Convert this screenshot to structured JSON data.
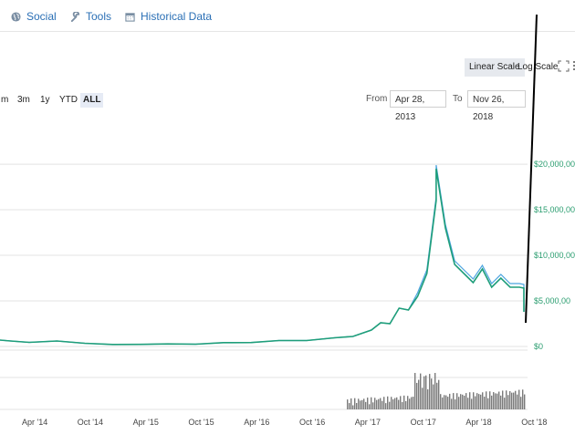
{
  "tabs": {
    "social": {
      "label": "Social",
      "icon": "globe-icon"
    },
    "tools": {
      "label": "Tools",
      "icon": "wrench-icon"
    },
    "historical": {
      "label": "Historical Data",
      "icon": "calendar-icon"
    }
  },
  "scale": {
    "linear": "Linear Scale",
    "log": "Log Scale",
    "active": "linear"
  },
  "ranges": [
    "m",
    "3m",
    "1y",
    "YTD",
    "ALL"
  ],
  "active_range": "ALL",
  "date_range": {
    "from_label": "From",
    "from": "Apr 28, 2013",
    "to_label": "To",
    "to": "Nov 26, 2018"
  },
  "colors": {
    "accent": "#2a6fb5",
    "price_line": "#1f9e7a",
    "price_line_alt": "#4aa3df",
    "volume": "#7a7a7a",
    "axis_text": "#2a9d6f"
  },
  "chart_data": {
    "type": "line",
    "yticks": [
      "$20,000,00",
      "$15,000,00",
      "$10,000,00",
      "$5,000,00",
      "$0"
    ],
    "ylim": [
      0,
      20000
    ],
    "xticks": [
      "Apr '14",
      "Oct '14",
      "Apr '15",
      "Oct '15",
      "Apr '16",
      "Oct '16",
      "Apr '17",
      "Oct '17",
      "Apr '18",
      "Oct '18"
    ],
    "series": [
      {
        "x": [
          "2013-11",
          "2014-02",
          "2014-04",
          "2014-07",
          "2014-10",
          "2015-01",
          "2015-04",
          "2015-07",
          "2015-10",
          "2016-01",
          "2016-04",
          "2016-07",
          "2016-10",
          "2017-01",
          "2017-03",
          "2017-05",
          "2017-06",
          "2017-07",
          "2017-08",
          "2017-09",
          "2017-10",
          "2017-11",
          "2017-12",
          "2017-12",
          "2018-01",
          "2018-02",
          "2018-03",
          "2018-04",
          "2018-05",
          "2018-06",
          "2018-07",
          "2018-08",
          "2018-09",
          "2018-10",
          "2018-11",
          "2018-11"
        ],
        "values": [
          700,
          600,
          450,
          600,
          350,
          220,
          230,
          280,
          250,
          420,
          430,
          650,
          650,
          950,
          1100,
          1800,
          2600,
          2500,
          4200,
          4000,
          5500,
          8000,
          16000,
          19500,
          13000,
          9000,
          8000,
          7000,
          8500,
          6500,
          7500,
          6500,
          6500,
          6400,
          6200,
          3800
        ]
      }
    ],
    "volume": "bar"
  }
}
